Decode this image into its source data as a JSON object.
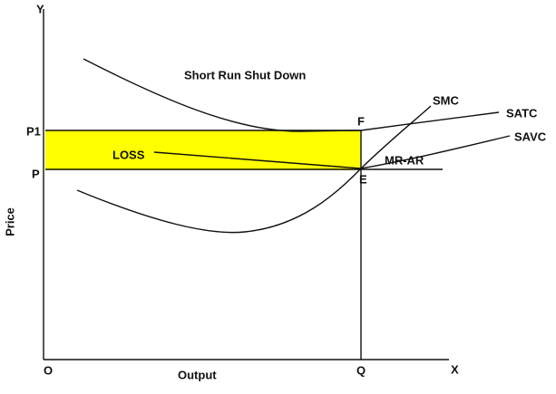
{
  "title": "Short Run Shut Down",
  "axes": {
    "y": "Y",
    "x": "X",
    "origin": "O",
    "y_label": "Price",
    "x_label": "Output"
  },
  "price_levels": {
    "p1": "P1",
    "p": "P"
  },
  "quantity": "Q",
  "points": {
    "f": "F",
    "e": "E"
  },
  "curves": {
    "smc": "SMC",
    "satc": "SATC",
    "savc": "SAVC",
    "mr_ar": "MR-AR"
  },
  "region": "LOSS"
}
